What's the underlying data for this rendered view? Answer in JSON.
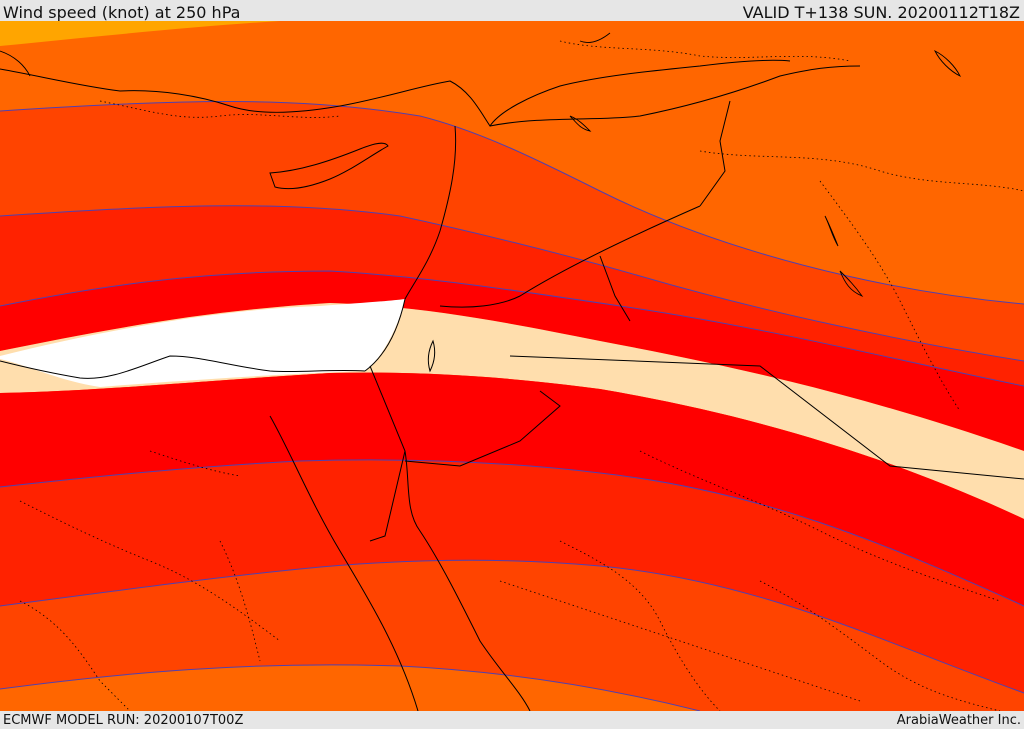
{
  "header": {
    "title": "Wind speed (knot) at 250 hPa",
    "valid": "VALID T+138 SUN. 20200112T18Z"
  },
  "footer": {
    "model_run": "ECMWF MODEL RUN: 20200107T00Z",
    "credit": "ArabiaWeather Inc."
  },
  "colors": {
    "band_lightest": "#ffa500",
    "band_orange": "#ff6600",
    "band_redorange": "#ff4400",
    "band_scarlet": "#ff2200",
    "band_red": "#ff0000",
    "band_wheat": "#ffdead",
    "band_white": "#ffffff",
    "contour_line": "#5040b0",
    "coast_line": "#000000"
  }
}
